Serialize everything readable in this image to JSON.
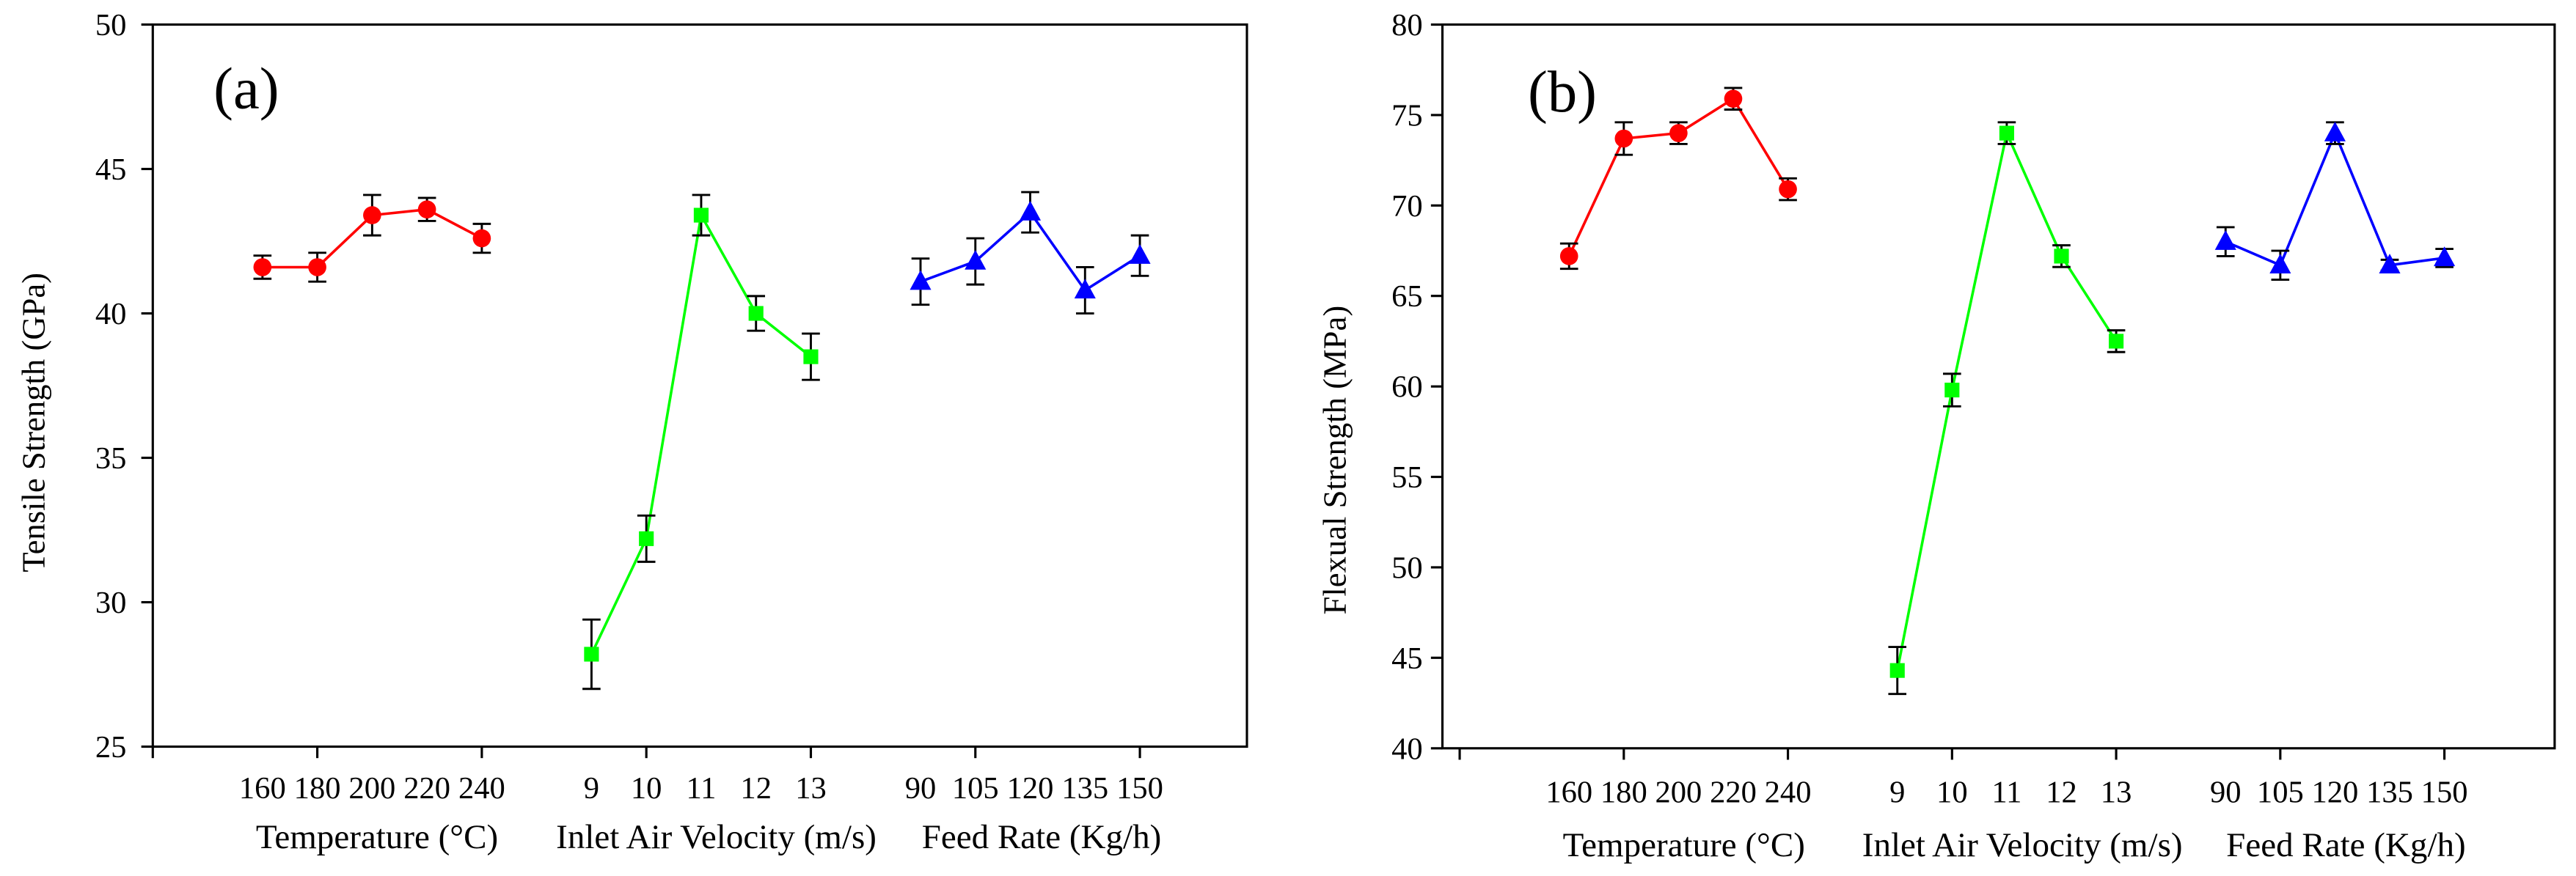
{
  "chart_data": [
    {
      "type": "line",
      "panel_label": "(a)",
      "title": "",
      "xlabel": "",
      "ylabel": "Tensile Strength (GPa)",
      "ylim": [
        25,
        50
      ],
      "yticks": [
        25,
        30,
        35,
        40,
        45,
        50
      ],
      "grid": false,
      "series": [
        {
          "name": "Temperature (°C)",
          "color": "#ff0000",
          "marker": "circle",
          "categories": [
            "160",
            "180",
            "200",
            "220",
            "240"
          ],
          "values": [
            41.6,
            41.6,
            43.4,
            43.6,
            42.6
          ],
          "errors": [
            0.4,
            0.5,
            0.7,
            0.4,
            0.5
          ]
        },
        {
          "name": "Inlet Air Velocity (m/s)",
          "color": "#00ff00",
          "marker": "square",
          "categories": [
            "9",
            "10",
            "11",
            "12",
            "13"
          ],
          "values": [
            28.2,
            32.2,
            43.4,
            40.0,
            38.5
          ],
          "errors": [
            1.2,
            0.8,
            0.7,
            0.6,
            0.8
          ]
        },
        {
          "name": "Feed Rate (Kg/h)",
          "color": "#0000ff",
          "marker": "triangle",
          "categories": [
            "90",
            "105",
            "120",
            "135",
            "150"
          ],
          "values": [
            41.1,
            41.8,
            43.5,
            40.8,
            42.0
          ],
          "errors": [
            0.8,
            0.8,
            0.7,
            0.8,
            0.7
          ]
        }
      ]
    },
    {
      "type": "line",
      "panel_label": "(b)",
      "title": "",
      "xlabel": "",
      "ylabel": "Flexual Strength (MPa)",
      "ylim": [
        40,
        80
      ],
      "yticks": [
        40,
        45,
        50,
        55,
        60,
        65,
        70,
        75,
        80
      ],
      "grid": false,
      "series": [
        {
          "name": "Temperature (°C)",
          "color": "#ff0000",
          "marker": "circle",
          "categories": [
            "160",
            "180",
            "200",
            "220",
            "240"
          ],
          "values": [
            67.2,
            73.7,
            74.0,
            75.9,
            70.9
          ],
          "errors": [
            0.7,
            0.9,
            0.6,
            0.6,
            0.6
          ]
        },
        {
          "name": "Inlet Air Velocity (m/s)",
          "color": "#00ff00",
          "marker": "square",
          "categories": [
            "9",
            "10",
            "11",
            "12",
            "13"
          ],
          "values": [
            44.3,
            59.8,
            74.0,
            67.2,
            62.5
          ],
          "errors": [
            1.3,
            0.9,
            0.6,
            0.6,
            0.6
          ]
        },
        {
          "name": "Feed Rate (Kg/h)",
          "color": "#0000ff",
          "marker": "triangle",
          "categories": [
            "90",
            "105",
            "120",
            "135",
            "150"
          ],
          "values": [
            68.0,
            66.7,
            74.0,
            66.7,
            67.1
          ],
          "errors": [
            0.8,
            0.8,
            0.6,
            0.3,
            0.5
          ]
        }
      ]
    }
  ]
}
